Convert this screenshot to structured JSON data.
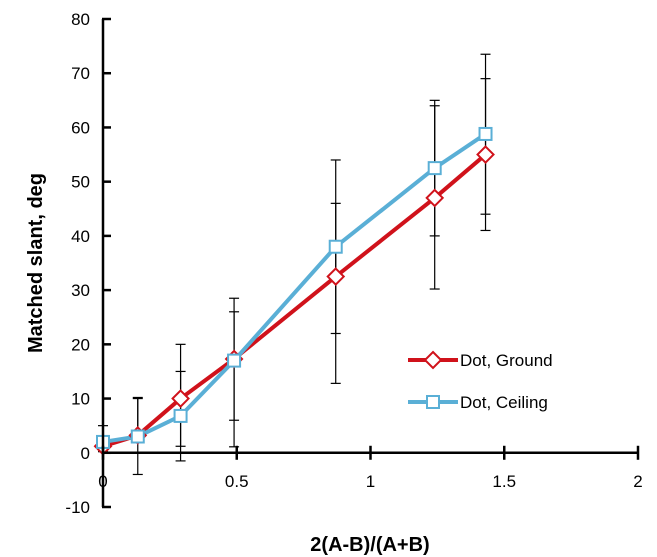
{
  "chart_data": {
    "type": "line",
    "title": "",
    "xlabel": "2(A-B)/(A+B)",
    "ylabel": "Matched slant, deg",
    "xlim": [
      0,
      2
    ],
    "ylim": [
      -10,
      80
    ],
    "xticks": [
      0,
      0.5,
      1,
      1.5,
      2
    ],
    "xtick_labels": [
      "0",
      "0.5",
      "1",
      "1.5",
      "2"
    ],
    "yticks": [
      -10,
      0,
      10,
      20,
      30,
      40,
      50,
      60,
      70,
      80
    ],
    "ytick_labels": [
      "-10",
      "0",
      "10",
      "20",
      "30",
      "40",
      "50",
      "60",
      "70",
      "80"
    ],
    "grid": false,
    "legend_position": "lower-right",
    "series": [
      {
        "name": "Dot, Ground",
        "color": "#d0121b",
        "marker": "diamond",
        "x": [
          0,
          0.13,
          0.29,
          0.49,
          0.87,
          1.24,
          1.43
        ],
        "y": [
          1.2,
          3.2,
          10,
          17.3,
          32.5,
          47,
          55
        ],
        "err_low": [
          0.2,
          3.8,
          1.2,
          1.1,
          12.8,
          30.2,
          41
        ],
        "err_high": [
          2.2,
          10.2,
          20,
          28.5,
          54,
          65,
          73.5
        ]
      },
      {
        "name": "Dot, Ceiling",
        "color": "#5aafd6",
        "marker": "square",
        "x": [
          0,
          0.13,
          0.29,
          0.49,
          0.87,
          1.24,
          1.43
        ],
        "y": [
          2,
          3,
          6.8,
          17,
          38,
          52.5,
          58.8
        ],
        "err_low": [
          0.5,
          -4,
          -1.5,
          6,
          22,
          40,
          44
        ],
        "err_high": [
          5,
          10,
          15,
          26,
          46,
          64,
          69
        ]
      }
    ]
  }
}
